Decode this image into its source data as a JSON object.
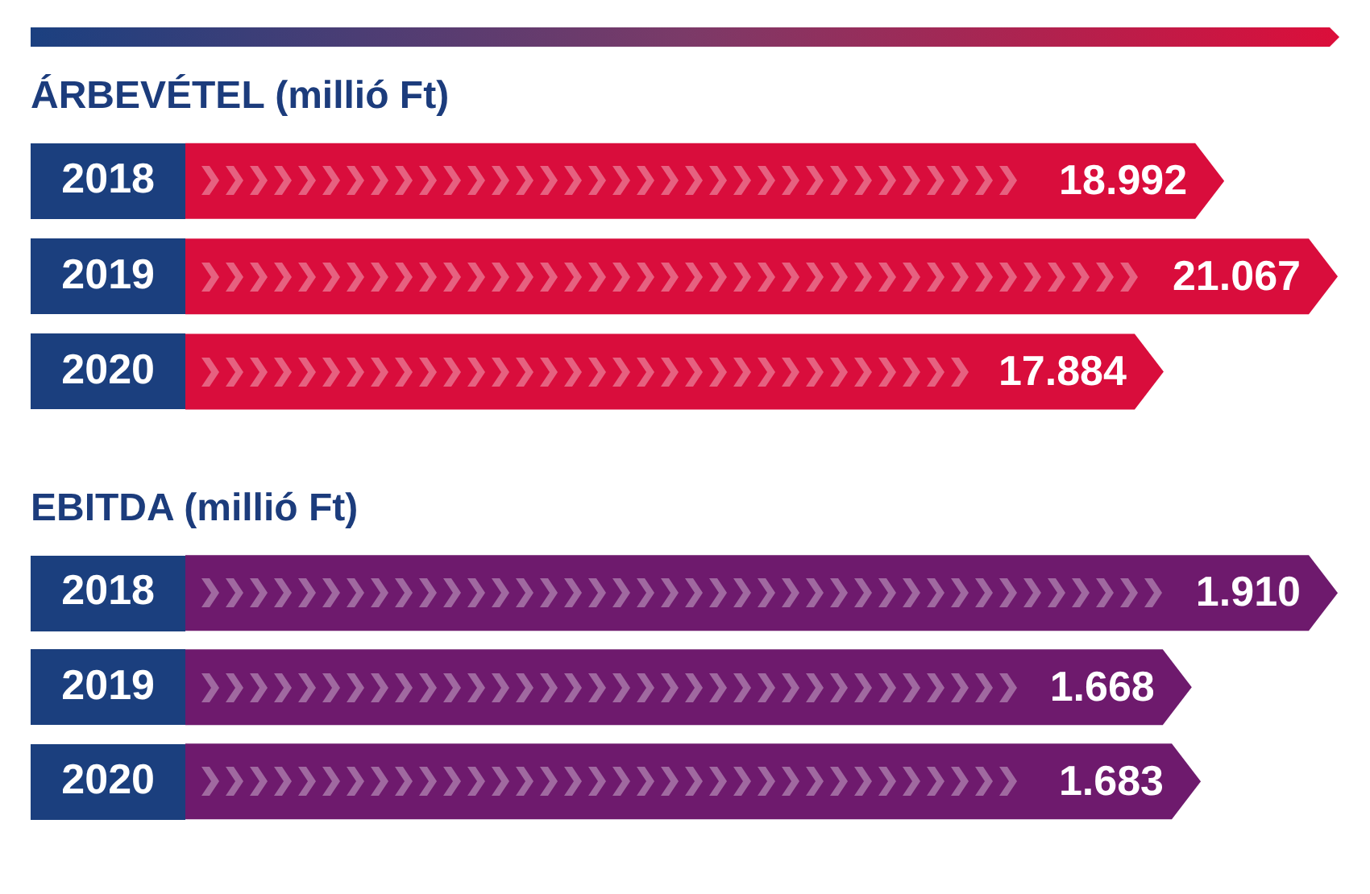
{
  "chart_data": [
    {
      "type": "bar",
      "orientation": "horizontal",
      "title": "ÁRBEVÉTEL (millió Ft)",
      "categories": [
        "2018",
        "2019",
        "2020"
      ],
      "values": [
        18992,
        21067,
        17884
      ],
      "value_labels": [
        "18.992",
        "21.067",
        "17.884"
      ],
      "color": "#d90d3c",
      "xlim": [
        0,
        21067
      ],
      "tick_labels": "y"
    },
    {
      "type": "bar",
      "orientation": "horizontal",
      "title": "EBITDA (millió Ft)",
      "categories": [
        "2018",
        "2019",
        "2020"
      ],
      "values": [
        1910,
        1668,
        1683
      ],
      "value_labels": [
        "1.910",
        "1.668",
        "1.683"
      ],
      "color": "#6e1a6d",
      "xlim": [
        0,
        1910
      ],
      "tick_labels": "y"
    }
  ]
}
